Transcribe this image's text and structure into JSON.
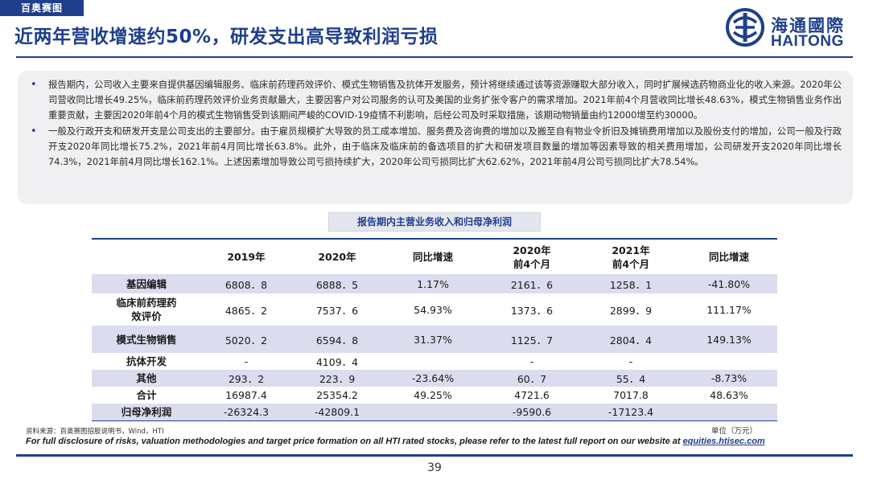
{
  "header": {
    "tag": "百奥赛图",
    "title": "近两年营收增速约50%，研发支出高导致利润亏损"
  },
  "logo": {
    "cn": "海通國際",
    "en": "HAITONG"
  },
  "summary": {
    "bullets": [
      "报告期内，公司收入主要来自提供基因编辑服务、临床前药理药效评价、模式生物销售及抗体开发服务，预计将继续通过该等资源赚取大部分收入，同时扩展候选药物商业化的收入来源。2020年公司营收同比增长49.25%，临床前药理药效评价业务贡献最大，主要因客户对公司服务的认可及美国的业务扩张令客户的需求增加。2021年前4个月营收同比增长48.63%，模式生物销售业务作出重要贡献，主要因2020年前4个月的模式生物销售受到该期间严峻的COVID-19疫情不利影响，后经公司及时采取措施，该期动物销量由约12000增至约30000。",
      "一般及行政开支和研发开支是公司支出的主要部分。由于雇员规模扩大导致的员工成本增加、服务费及咨询费的增加以及搬至自有物业令折旧及摊销费用增加以及股份支付的增加，公司一般及行政开支2020年同比增长75.2%，2021年前4月同比增长63.8%。此外，由于临床及临床前的备选项目的扩大和研发项目数量的增加等因素导致的相关费用增加，公司研发开支2020年同比增长74.3%，2021年前4月同比增长162.1%。上述因素增加导致公司亏损持续扩大，2020年公司亏损同比扩大62.62%，2021年前4月公司亏损同比扩大78.54%。"
    ]
  },
  "table": {
    "title": "报告期内主营业务收入和归母净利润",
    "headers": [
      "",
      "2019年",
      "2020年",
      "同比增速",
      "2020年\n前4个月",
      "2021年\n前4个月",
      "同比增速"
    ],
    "rows": [
      {
        "label": "基因编辑",
        "cells": [
          "6808．8",
          "6888．5",
          "1.17%",
          "2161．6",
          "1258．1",
          "-41.80%"
        ],
        "highlight": true,
        "height": 24
      },
      {
        "label": "临床前药理药\n效评价",
        "cells": [
          "4865．2",
          "7537．6",
          "54.93%",
          "1373．6",
          "2899．9",
          "111.17%"
        ],
        "highlight": false,
        "height": 40
      },
      {
        "label": "模式生物销售",
        "cells": [
          "5020．2",
          "6594．8",
          "31.37%",
          "1125．7",
          "2804．4",
          "149.13%"
        ],
        "highlight": true,
        "height": 34
      },
      {
        "label": "抗体开发",
        "cells": [
          "-",
          "4109．4",
          "",
          "-",
          "-",
          ""
        ],
        "highlight": false,
        "height": 21
      },
      {
        "label": "其他",
        "cells": [
          "293．2",
          "223．9",
          "-23.64%",
          "60．7",
          "55．4",
          "-8.73%"
        ],
        "highlight": true,
        "height": 21
      },
      {
        "label": "合计",
        "cells": [
          "16987.4",
          "25354.2",
          "49.25%",
          "4721.6",
          "7017.8",
          "48.63%"
        ],
        "highlight": false,
        "height": 21
      },
      {
        "label": "归母净利润",
        "cells": [
          "-26324.3",
          "-42809.1",
          "",
          "-9590.6",
          "-17123.4",
          ""
        ],
        "highlight": true,
        "height": 21
      }
    ]
  },
  "footer": {
    "source": "资料来源：百奥赛图招股说明书，Wind，HTI",
    "unit": "单位（万元）",
    "disclaimer_text": "For full disclosure of risks, valuation methodologies and target price formation on all HTI rated stocks, please refer to the latest full report on our website at ",
    "disclaimer_link": "equities.htisec.com",
    "page_number": "39"
  },
  "colors": {
    "brand": "#1f3f8c",
    "row_highlight": "#dcdcef",
    "summary_bg": "#f0f0f3"
  }
}
